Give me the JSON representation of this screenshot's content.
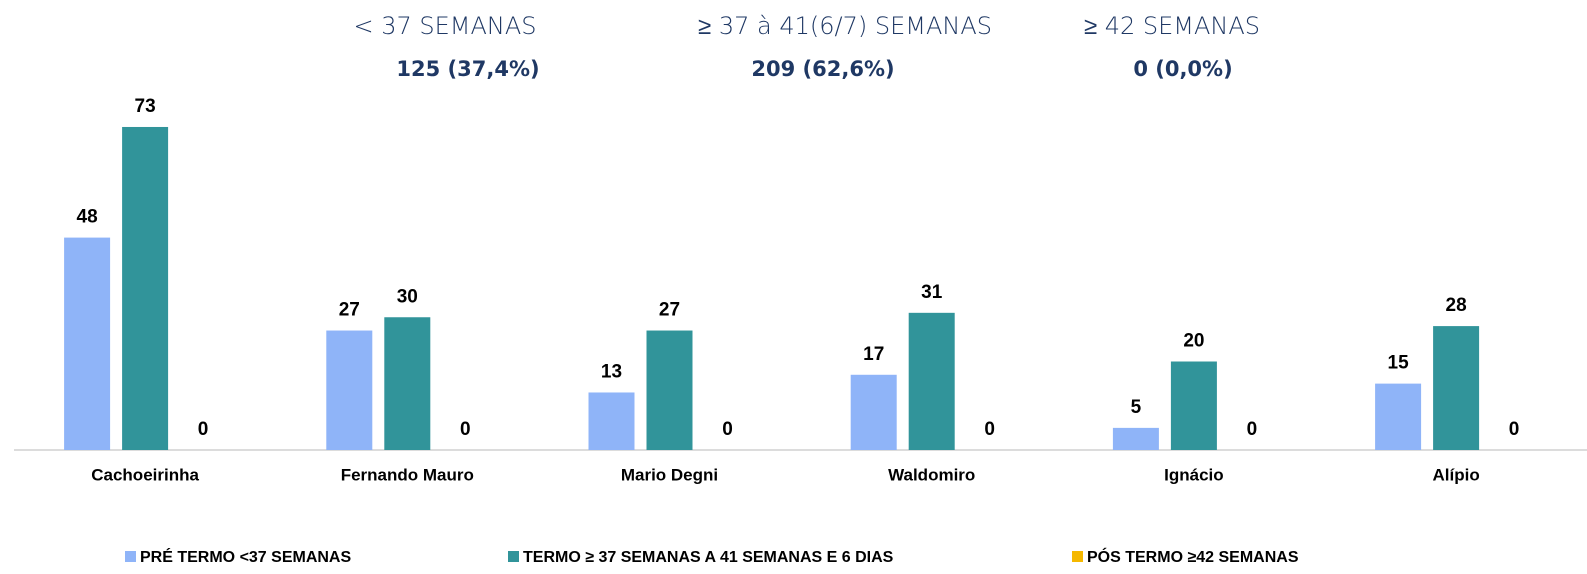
{
  "chart_data": {
    "type": "bar",
    "annotations": [
      {
        "title": "< 37 SEMANAS",
        "text": "125 (37,4%)"
      },
      {
        "title": "≥ 37 à 41(6/7) SEMANAS",
        "text": "209 (62,6%)"
      },
      {
        "title": "≥ 42 SEMANAS",
        "text": "0 (0,0%)"
      }
    ],
    "categories": [
      "Cachoeirinha",
      "Fernando Mauro",
      "Mario Degni",
      "Waldomiro",
      "Ignácio",
      "Alípio"
    ],
    "series": [
      {
        "name": "PRÉ TERMO <37 SEMANAS",
        "color": "#8fb4f8",
        "values": [
          48,
          27,
          13,
          17,
          5,
          15
        ]
      },
      {
        "name": "TERMO ≥ 37 SEMANAS A 41 SEMANAS E 6 DIAS",
        "color": "#31949a",
        "values": [
          73,
          30,
          27,
          31,
          20,
          28
        ]
      },
      {
        "name": "PÓS TERMO ≥42 SEMANAS",
        "color": "#f5b800",
        "values": [
          0,
          0,
          0,
          0,
          0,
          0
        ]
      }
    ],
    "ylim": [
      0,
      80
    ]
  }
}
